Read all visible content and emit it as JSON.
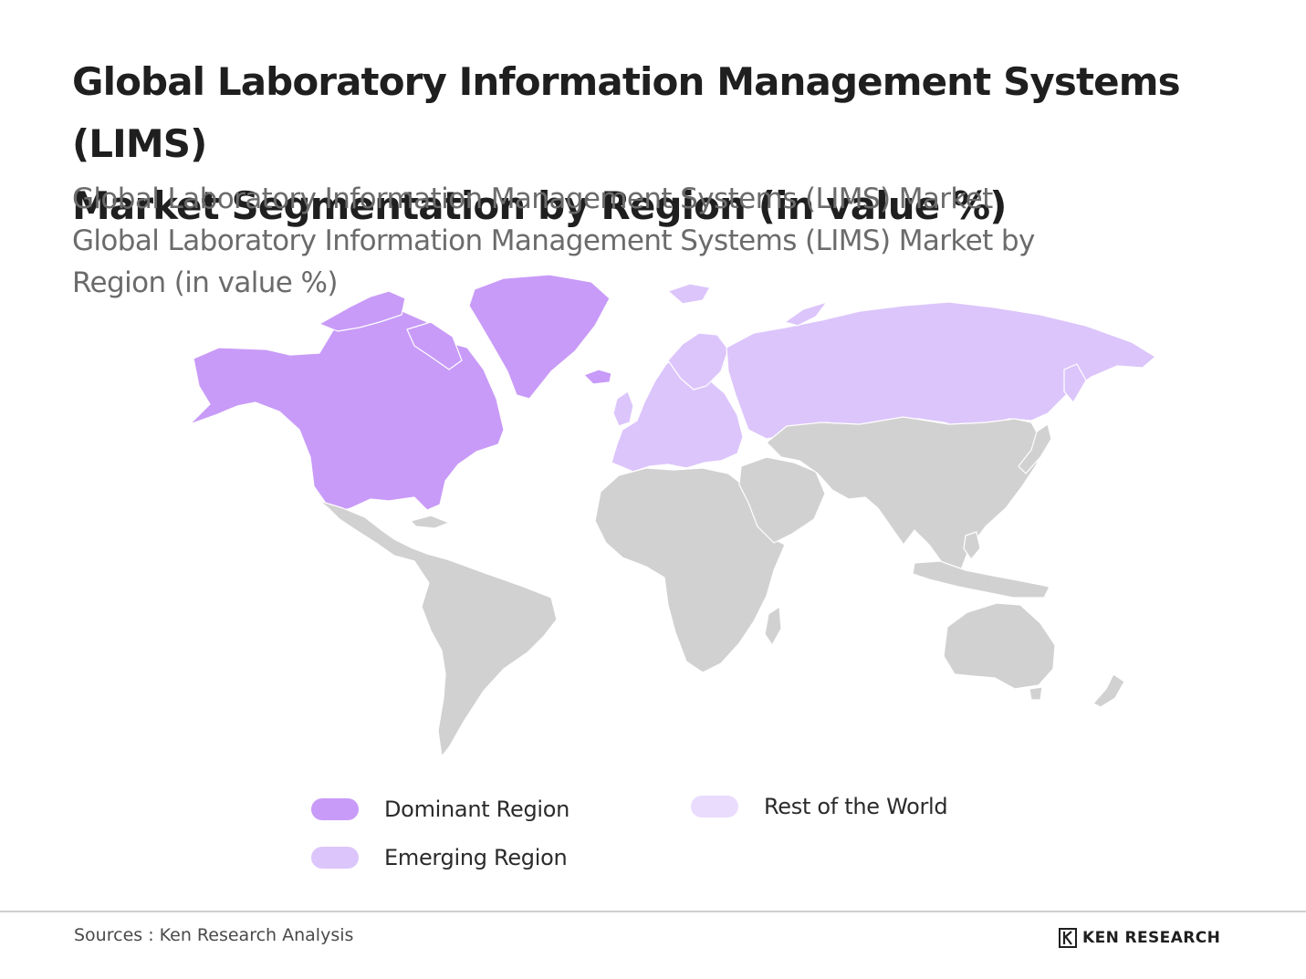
{
  "title": {
    "line1": "Global Laboratory Information Management Systems (LIMS)",
    "line2": "Market Segmentation by Region (in value %)"
  },
  "subtitle": {
    "line1": "Global Laboratory Information Management Systems (LIMS) Market",
    "line2": "Global Laboratory Information Management Systems (LIMS) Market by",
    "line3": "Region (in value %)"
  },
  "colors": {
    "dominant": "#c89bf8",
    "emerging": "#dcc5fb",
    "rest_of_world_swatch": "#eadcfd",
    "unassigned_land": "#d1d1d1",
    "borders": "#ffffff"
  },
  "map": {
    "regions": [
      {
        "name": "North America",
        "category": "Dominant Region"
      },
      {
        "name": "Greenland",
        "category": "Dominant Region"
      },
      {
        "name": "Europe",
        "category": "Emerging Region"
      },
      {
        "name": "Russia",
        "category": "Emerging Region"
      }
    ]
  },
  "legend": {
    "dominant_label": "Dominant Region",
    "emerging_label": "Emerging Region",
    "rest_label": "Rest of the World"
  },
  "footer": {
    "sources": "Sources : Ken Research Analysis",
    "logo_text": "KEN RESEARCH",
    "logo_icon": "ken-research-k-logo-icon"
  }
}
